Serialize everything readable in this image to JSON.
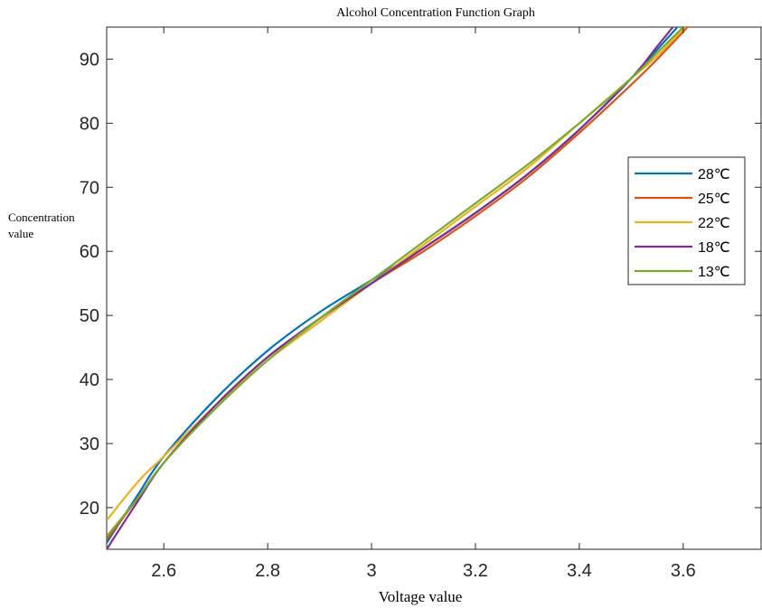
{
  "chart_data": {
    "type": "line",
    "title": "Alcohol Concentration Function Graph",
    "xlabel": "Voltage value",
    "ylabel_lines": [
      "Concentration",
      "value"
    ],
    "xlim": [
      2.49,
      3.75
    ],
    "ylim": [
      13.5,
      95
    ],
    "x_ticks": [
      2.6,
      2.8,
      3,
      3.2,
      3.4,
      3.6
    ],
    "x_tick_labels": [
      "2.6",
      "2.8",
      "3",
      "3.2",
      "3.4",
      "3.6"
    ],
    "y_ticks": [
      20,
      30,
      40,
      50,
      60,
      70,
      80,
      90
    ],
    "y_tick_labels": [
      "20",
      "30",
      "40",
      "50",
      "60",
      "70",
      "80",
      "90"
    ],
    "grid": false,
    "legend_position": "right",
    "series": [
      {
        "name": "28℃",
        "color": "#0072BD",
        "x": [
          2.49,
          2.55,
          2.6,
          2.7,
          2.8,
          2.9,
          3.0,
          3.1,
          3.2,
          3.3,
          3.4,
          3.5,
          3.55,
          3.6
        ],
        "y": [
          14.5,
          22,
          28,
          37,
          44.5,
          50.5,
          55.5,
          60.5,
          66,
          72,
          79,
          87,
          91.5,
          96
        ]
      },
      {
        "name": "25℃",
        "color": "#D95319",
        "x": [
          2.49,
          2.55,
          2.6,
          2.7,
          2.8,
          2.9,
          3.0,
          3.1,
          3.2,
          3.3,
          3.4,
          3.5,
          3.55,
          3.62
        ],
        "y": [
          15,
          21.5,
          27,
          36,
          43.5,
          49.5,
          55,
          60,
          65.5,
          71.5,
          78.5,
          86,
          90,
          96
        ]
      },
      {
        "name": "22℃",
        "color": "#EDB120",
        "x": [
          2.49,
          2.55,
          2.6,
          2.7,
          2.8,
          2.9,
          3.0,
          3.1,
          3.2,
          3.3,
          3.4,
          3.5,
          3.55,
          3.61
        ],
        "y": [
          18,
          24,
          28,
          36,
          43,
          49,
          55,
          61,
          67,
          73,
          80,
          87,
          90.5,
          95.5
        ]
      },
      {
        "name": "18℃",
        "color": "#7E2F8E",
        "x": [
          2.49,
          2.55,
          2.6,
          2.7,
          2.8,
          2.9,
          3.0,
          3.1,
          3.2,
          3.3,
          3.4,
          3.5,
          3.55,
          3.59
        ],
        "y": [
          13.5,
          21,
          27,
          36,
          43.5,
          49.5,
          55,
          60.5,
          66,
          72,
          79,
          87,
          92,
          96
        ]
      },
      {
        "name": "13℃",
        "color": "#77AC30",
        "x": [
          2.49,
          2.55,
          2.6,
          2.7,
          2.8,
          2.9,
          3.0,
          3.1,
          3.2,
          3.3,
          3.4,
          3.5,
          3.55,
          3.6
        ],
        "y": [
          15.5,
          21.5,
          27,
          35.5,
          43,
          49.5,
          55.5,
          61.5,
          67.5,
          73.5,
          80,
          87,
          91,
          95
        ]
      }
    ]
  }
}
